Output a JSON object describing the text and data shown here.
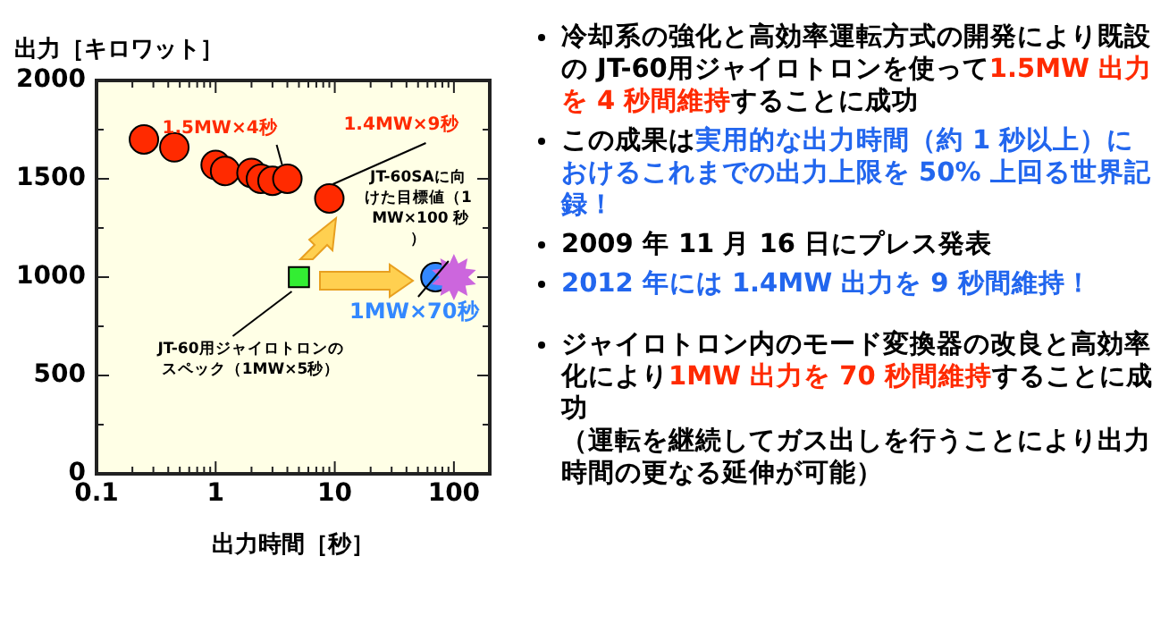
{
  "chart_data": {
    "type": "scatter",
    "xlabel": "出力時間［秒］",
    "ylabel": "出力［キロワット］",
    "log": "x",
    "grid": false,
    "legend": false,
    "xlim": [
      0.1,
      200
    ],
    "xticks": [
      0.1,
      {
        "value": 0.2,
        "label": null
      },
      {
        "value": 0.3,
        "label": null
      },
      {
        "value": 0.4,
        "label": null
      },
      {
        "value": 0.5,
        "label": null
      },
      {
        "value": 0.6,
        "label": null
      },
      {
        "value": 0.7,
        "label": null
      },
      {
        "value": 0.8,
        "label": null
      },
      {
        "value": 0.9,
        "label": null
      },
      1,
      {
        "value": 2,
        "label": null
      },
      {
        "value": 3,
        "label": null
      },
      {
        "value": 4,
        "label": null
      },
      {
        "value": 5,
        "label": null
      },
      {
        "value": 6,
        "label": null
      },
      {
        "value": 7,
        "label": null
      },
      {
        "value": 8,
        "label": null
      },
      {
        "value": 9,
        "label": null
      },
      10,
      {
        "value": 20,
        "label": null
      },
      {
        "value": 30,
        "label": null
      },
      {
        "value": 40,
        "label": null
      },
      {
        "value": 50,
        "label": null
      },
      {
        "value": 60,
        "label": null
      },
      {
        "value": 70,
        "label": null
      },
      {
        "value": 80,
        "label": null
      },
      {
        "value": 90,
        "label": null
      },
      100,
      {
        "value": 200,
        "label": null
      }
    ],
    "ylim": [
      0,
      2000
    ],
    "yticks": [
      0,
      {
        "value": 250,
        "label": null
      },
      500,
      {
        "value": 750,
        "label": null
      },
      1000,
      {
        "value": 1250,
        "label": null
      },
      1500,
      {
        "value": 1750,
        "label": null
      },
      2000
    ],
    "series": [
      {
        "color": "#ff2a00",
        "marker": "circle",
        "x": [
          0.25,
          0.45,
          1.0,
          1.2,
          2.0,
          2.4,
          3.0,
          4,
          9
        ],
        "values": [
          1700,
          1660,
          1570,
          1540,
          1530,
          1500,
          1490,
          1500,
          1400
        ]
      },
      {
        "color": "#33ee33",
        "marker": "square",
        "x": [
          5
        ],
        "values": [
          1000
        ]
      },
      {
        "color": "#3388ff",
        "marker": "circle",
        "x": [
          70
        ],
        "values": [
          1000
        ]
      },
      {
        "color": "#cc66dd",
        "marker": "star",
        "x": [
          100
        ],
        "values": [
          1000
        ]
      }
    ],
    "annotations": [
      {
        "text": "1.5MW×4秒",
        "x": 4,
        "y": 1500
      },
      {
        "text": "1.4MW×9秒",
        "x": 9,
        "y": 1400
      },
      {
        "text": "JT-60SAに向けた目標値（1 MW×100 秒）",
        "x": 100,
        "y": 1000
      },
      {
        "text": "1MW×70秒",
        "x": 70,
        "y": 1000
      },
      {
        "text": "JT-60用ジャイロトロンのスペック（1MW×5秒）",
        "x": 5,
        "y": 1000
      },
      "冷却系の強化と高効率運転方式の開発により既設の JT-60用ジャイロトロンを使って",
      "1.5MW 出力を 4 秒間維持",
      "することに成功",
      "この成果は",
      "実用的な出力時間（約 1 秒以上）におけるこれまでの出力上限を 50% 上回る世界記録！",
      "2009 年 11 月 16 日にプレス発表",
      "2012 年には 1.4MW 出力を 9 秒間維持！",
      "ジャイロトロン内のモード変換器の改良と高効率化により",
      "1MW 出力を 70 秒間維持",
      "することに成功",
      "（運転を継続してガス出しを行うことにより出力時間の更なる延伸が可能）"
    ]
  }
}
